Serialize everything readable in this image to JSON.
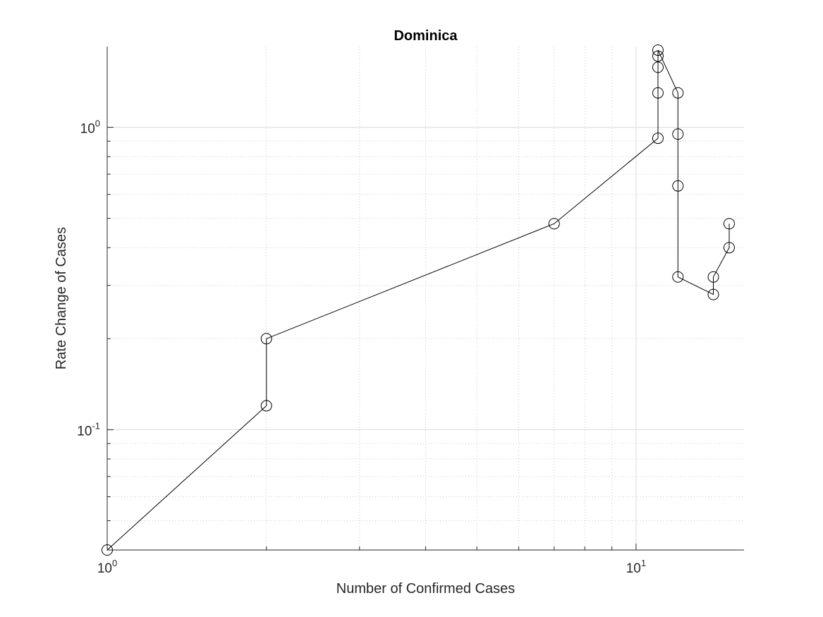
{
  "chart_data": {
    "type": "line",
    "title": "Dominica",
    "xlabel": "Number of Confirmed Cases",
    "ylabel": "Rate Change of Cases",
    "xscale": "log",
    "yscale": "log",
    "xlim": [
      1,
      16
    ],
    "ylim": [
      0.04,
      1.85
    ],
    "grid": true,
    "marker": "circle",
    "line_color": "#000000",
    "x_ticks": [
      {
        "base": "10",
        "exp": "0",
        "value": 1
      },
      {
        "base": "10",
        "exp": "1",
        "value": 10
      }
    ],
    "y_ticks": [
      {
        "base": "10",
        "exp": "-1",
        "value": 0.1
      },
      {
        "base": "10",
        "exp": "0",
        "value": 1
      }
    ],
    "series": [
      {
        "x": [
          1,
          2,
          2,
          7,
          11,
          11,
          11,
          11,
          11,
          12,
          12,
          12,
          12,
          14,
          14,
          15,
          15
        ],
        "y": [
          0.04,
          0.12,
          0.2,
          0.48,
          0.92,
          1.3,
          1.58,
          1.72,
          1.8,
          1.3,
          0.95,
          0.64,
          0.32,
          0.28,
          0.32,
          0.4,
          0.48
        ]
      }
    ]
  }
}
